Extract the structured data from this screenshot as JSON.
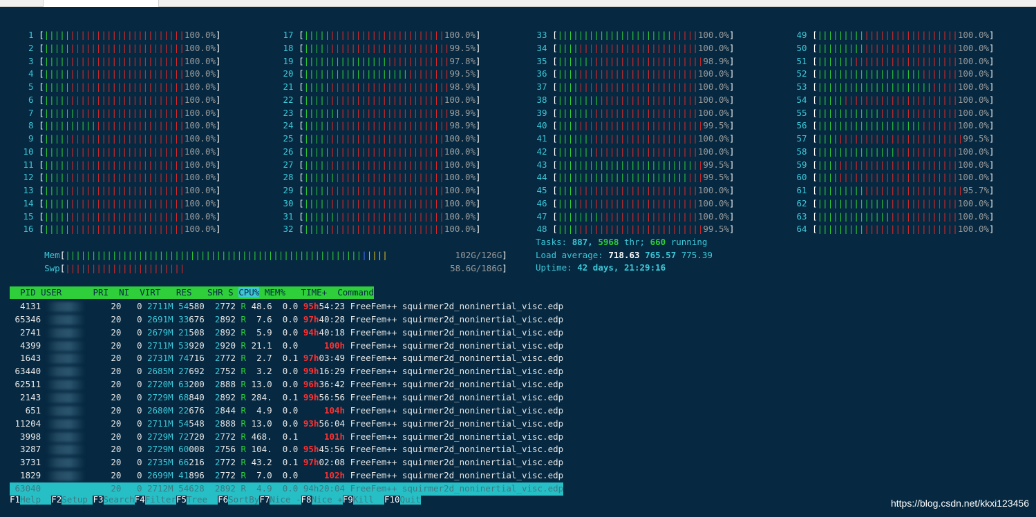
{
  "colors": {
    "terminal_bg": "#062941",
    "bar_green": "#2ecf3a",
    "bar_red": "#e02828",
    "header_bg": "#2ecf3a",
    "selection_bg": "#27bfc6",
    "cyan": "#3cc8d8"
  },
  "cpus": [
    {
      "id": "1",
      "pct": "100.0%",
      "green": 5
    },
    {
      "id": "2",
      "pct": "100.0%",
      "green": 5
    },
    {
      "id": "3",
      "pct": "100.0%",
      "green": 4
    },
    {
      "id": "4",
      "pct": "100.0%",
      "green": 5
    },
    {
      "id": "5",
      "pct": "100.0%",
      "green": 5
    },
    {
      "id": "6",
      "pct": "100.0%",
      "green": 4
    },
    {
      "id": "7",
      "pct": "100.0%",
      "green": 6
    },
    {
      "id": "8",
      "pct": "100.0%",
      "green": 10
    },
    {
      "id": "9",
      "pct": "100.0%",
      "green": 4
    },
    {
      "id": "10",
      "pct": "100.0%",
      "green": 4
    },
    {
      "id": "11",
      "pct": "100.0%",
      "green": 4
    },
    {
      "id": "12",
      "pct": "100.0%",
      "green": 4
    },
    {
      "id": "13",
      "pct": "100.0%",
      "green": 4
    },
    {
      "id": "14",
      "pct": "100.0%",
      "green": 5
    },
    {
      "id": "15",
      "pct": "100.0%",
      "green": 5
    },
    {
      "id": "16",
      "pct": "100.0%",
      "green": 5
    },
    {
      "id": "17",
      "pct": "100.0%",
      "green": 5
    },
    {
      "id": "18",
      "pct": "99.5%",
      "green": 4
    },
    {
      "id": "19",
      "pct": "97.8%",
      "green": 16
    },
    {
      "id": "20",
      "pct": "99.5%",
      "green": 20
    },
    {
      "id": "21",
      "pct": "98.9%",
      "green": 5
    },
    {
      "id": "22",
      "pct": "100.0%",
      "green": 4
    },
    {
      "id": "23",
      "pct": "98.9%",
      "green": 7
    },
    {
      "id": "24",
      "pct": "98.9%",
      "green": 5
    },
    {
      "id": "25",
      "pct": "100.0%",
      "green": 4
    },
    {
      "id": "26",
      "pct": "100.0%",
      "green": 5
    },
    {
      "id": "27",
      "pct": "100.0%",
      "green": 4
    },
    {
      "id": "28",
      "pct": "100.0%",
      "green": 6
    },
    {
      "id": "29",
      "pct": "100.0%",
      "green": 5
    },
    {
      "id": "30",
      "pct": "100.0%",
      "green": 4
    },
    {
      "id": "31",
      "pct": "100.0%",
      "green": 6
    },
    {
      "id": "32",
      "pct": "100.0%",
      "green": 5
    },
    {
      "id": "33",
      "pct": "100.0%",
      "green": 22
    },
    {
      "id": "34",
      "pct": "100.0%",
      "green": 4
    },
    {
      "id": "35",
      "pct": "98.9%",
      "green": 6
    },
    {
      "id": "36",
      "pct": "100.0%",
      "green": 4
    },
    {
      "id": "37",
      "pct": "100.0%",
      "green": 4
    },
    {
      "id": "38",
      "pct": "100.0%",
      "green": 8
    },
    {
      "id": "39",
      "pct": "100.0%",
      "green": 6
    },
    {
      "id": "40",
      "pct": "99.5%",
      "green": 4
    },
    {
      "id": "41",
      "pct": "100.0%",
      "green": 6
    },
    {
      "id": "42",
      "pct": "100.0%",
      "green": 7
    },
    {
      "id": "43",
      "pct": "99.5%",
      "green": 26
    },
    {
      "id": "44",
      "pct": "99.5%",
      "green": 25
    },
    {
      "id": "45",
      "pct": "100.0%",
      "green": 4
    },
    {
      "id": "46",
      "pct": "100.0%",
      "green": 4
    },
    {
      "id": "47",
      "pct": "100.0%",
      "green": 8
    },
    {
      "id": "48",
      "pct": "99.5%",
      "green": 4
    },
    {
      "id": "49",
      "pct": "100.0%",
      "green": 9
    },
    {
      "id": "50",
      "pct": "100.0%",
      "green": 9
    },
    {
      "id": "51",
      "pct": "100.0%",
      "green": 7
    },
    {
      "id": "52",
      "pct": "100.0%",
      "green": 20
    },
    {
      "id": "53",
      "pct": "100.0%",
      "green": 22
    },
    {
      "id": "54",
      "pct": "100.0%",
      "green": 5
    },
    {
      "id": "55",
      "pct": "100.0%",
      "green": 12
    },
    {
      "id": "56",
      "pct": "100.0%",
      "green": 20
    },
    {
      "id": "57",
      "pct": "99.5%",
      "green": 4
    },
    {
      "id": "58",
      "pct": "100.0%",
      "green": 15
    },
    {
      "id": "59",
      "pct": "100.0%",
      "green": 4
    },
    {
      "id": "60",
      "pct": "100.0%",
      "green": 4
    },
    {
      "id": "61",
      "pct": "95.7%",
      "green": 9
    },
    {
      "id": "62",
      "pct": "100.0%",
      "green": 14
    },
    {
      "id": "63",
      "pct": "100.0%",
      "green": 14
    },
    {
      "id": "64",
      "pct": "100.0%",
      "green": 9
    }
  ],
  "mem": {
    "label": "Mem",
    "value": "102G/126G",
    "used_fraction": 0.81
  },
  "swp": {
    "label": "Swp",
    "value": "58.6G/186G",
    "used_fraction": 0.315
  },
  "summary": {
    "tasks_label": "Tasks:",
    "tasks": "887,",
    "threads": "5968",
    "threads_label": "thr;",
    "running": "660",
    "running_label": "running",
    "load_label": "Load average:",
    "load1": "718.63",
    "load5": "765.57",
    "load15": "775.39",
    "uptime_label": "Uptime:",
    "uptime": "42 days, 21:29:16"
  },
  "columns": {
    "pid": "PID",
    "user": "USER",
    "pri": "PRI",
    "ni": "NI",
    "virt": "VIRT",
    "res": "RES",
    "shr": "SHR",
    "s": "S",
    "cpu": "CPU%",
    "mem": "MEM%",
    "time": "TIME+",
    "command": "Command"
  },
  "processes": [
    {
      "pid": "4131",
      "pri": "20",
      "ni": "0",
      "virt_a": "2711M",
      "res_a": "54",
      "res_b": "580",
      "shr_a": "2",
      "shr_b": "772",
      "s": "R",
      "cpu": "48.6",
      "mem": "0.0",
      "time_h": "95h",
      "time_r": "54:23",
      "cmd": "FreeFem++ squirmer2d_noninertial_visc.edp"
    },
    {
      "pid": "65346",
      "pri": "20",
      "ni": "0",
      "virt_a": "2691M",
      "res_a": "33",
      "res_b": "676",
      "shr_a": "2",
      "shr_b": "892",
      "s": "R",
      "cpu": "7.6",
      "mem": "0.0",
      "time_h": "97h",
      "time_r": "40:28",
      "cmd": "FreeFem++ squirmer2d_noninertial_visc.edp"
    },
    {
      "pid": "2741",
      "pri": "20",
      "ni": "0",
      "virt_a": "2679M",
      "res_a": "21",
      "res_b": "508",
      "shr_a": "2",
      "shr_b": "892",
      "s": "R",
      "cpu": "5.9",
      "mem": "0.0",
      "time_h": "94h",
      "time_r": "40:18",
      "cmd": "FreeFem++ squirmer2d_noninertial_visc.edp"
    },
    {
      "pid": "4399",
      "pri": "20",
      "ni": "0",
      "virt_a": "2711M",
      "res_a": "53",
      "res_b": "920",
      "shr_a": "2",
      "shr_b": "920",
      "s": "R",
      "cpu": "21.1",
      "mem": "0.0",
      "time_h": "100h",
      "time_r": "",
      "cmd": "FreeFem++ squirmer2d_noninertial_visc.edp"
    },
    {
      "pid": "1643",
      "pri": "20",
      "ni": "0",
      "virt_a": "2731M",
      "res_a": "74",
      "res_b": "716",
      "shr_a": "2",
      "shr_b": "772",
      "s": "R",
      "cpu": "2.7",
      "mem": "0.1",
      "time_h": "97h",
      "time_r": "03:49",
      "cmd": "FreeFem++ squirmer2d_noninertial_visc.edp"
    },
    {
      "pid": "63440",
      "pri": "20",
      "ni": "0",
      "virt_a": "2685M",
      "res_a": "27",
      "res_b": "692",
      "shr_a": "2",
      "shr_b": "752",
      "s": "R",
      "cpu": "3.2",
      "mem": "0.0",
      "time_h": "99h",
      "time_r": "16:29",
      "cmd": "FreeFem++ squirmer2d_noninertial_visc.edp"
    },
    {
      "pid": "62511",
      "pri": "20",
      "ni": "0",
      "virt_a": "2720M",
      "res_a": "63",
      "res_b": "200",
      "shr_a": "2",
      "shr_b": "888",
      "s": "R",
      "cpu": "13.0",
      "mem": "0.0",
      "time_h": "96h",
      "time_r": "36:42",
      "cmd": "FreeFem++ squirmer2d_noninertial_visc.edp"
    },
    {
      "pid": "2143",
      "pri": "20",
      "ni": "0",
      "virt_a": "2729M",
      "res_a": "68",
      "res_b": "840",
      "shr_a": "2",
      "shr_b": "892",
      "s": "R",
      "cpu": "284.",
      "mem": "0.1",
      "time_h": "99h",
      "time_r": "56:56",
      "cmd": "FreeFem++ squirmer2d_noninertial_visc.edp"
    },
    {
      "pid": "651",
      "pri": "20",
      "ni": "0",
      "virt_a": "2680M",
      "res_a": "22",
      "res_b": "676",
      "shr_a": "2",
      "shr_b": "844",
      "s": "R",
      "cpu": "4.9",
      "mem": "0.0",
      "time_h": "104h",
      "time_r": "",
      "cmd": "FreeFem++ squirmer2d_noninertial_visc.edp"
    },
    {
      "pid": "11204",
      "pri": "20",
      "ni": "0",
      "virt_a": "2711M",
      "res_a": "54",
      "res_b": "548",
      "shr_a": "2",
      "shr_b": "888",
      "s": "R",
      "cpu": "13.0",
      "mem": "0.0",
      "time_h": "93h",
      "time_r": "56:04",
      "cmd": "FreeFem++ squirmer2d_noninertial_visc.edp"
    },
    {
      "pid": "3998",
      "pri": "20",
      "ni": "0",
      "virt_a": "2729M",
      "res_a": "72",
      "res_b": "720",
      "shr_a": "2",
      "shr_b": "772",
      "s": "R",
      "cpu": "468.",
      "mem": "0.1",
      "time_h": "101h",
      "time_r": "",
      "cmd": "FreeFem++ squirmer2d_noninertial_visc.edp"
    },
    {
      "pid": "3287",
      "pri": "20",
      "ni": "0",
      "virt_a": "2729M",
      "res_a": "60",
      "res_b": "008",
      "shr_a": "2",
      "shr_b": "756",
      "s": "R",
      "cpu": "104.",
      "mem": "0.0",
      "time_h": "95h",
      "time_r": "45:56",
      "cmd": "FreeFem++ squirmer2d_noninertial_visc.edp"
    },
    {
      "pid": "3731",
      "pri": "20",
      "ni": "0",
      "virt_a": "2735M",
      "res_a": "66",
      "res_b": "216",
      "shr_a": "2",
      "shr_b": "772",
      "s": "R",
      "cpu": "43.2",
      "mem": "0.1",
      "time_h": "97h",
      "time_r": "02:08",
      "cmd": "FreeFem++ squirmer2d_noninertial_visc.edp"
    },
    {
      "pid": "1829",
      "pri": "20",
      "ni": "0",
      "virt_a": "2699M",
      "res_a": "41",
      "res_b": "896",
      "shr_a": "2",
      "shr_b": "772",
      "s": "R",
      "cpu": "7.0",
      "mem": "0.0",
      "time_h": "102h",
      "time_r": "",
      "cmd": "FreeFem++ squirmer2d_noninertial_visc.edp"
    }
  ],
  "selected_process": {
    "pid": "63040",
    "pri": "20",
    "ni": "0",
    "virt_a": "2712M",
    "res_a": "54",
    "res_b": "628",
    "shr_a": "2",
    "shr_b": "892",
    "s": "R",
    "cpu": "4.9",
    "mem": "0.0",
    "time_h": "94h",
    "time_r": "20:04",
    "cmd": "FreeFem++ squirmer2d_noninertial_visc.edp"
  },
  "fkeys": [
    {
      "key": "F1",
      "label": "Help  "
    },
    {
      "key": "F2",
      "label": "Setup "
    },
    {
      "key": "F3",
      "label": "Search"
    },
    {
      "key": "F4",
      "label": "Filter"
    },
    {
      "key": "F5",
      "label": "Tree  "
    },
    {
      "key": "F6",
      "label": "SortBy"
    },
    {
      "key": "F7",
      "label": "Nice -"
    },
    {
      "key": "F8",
      "label": "Nice +"
    },
    {
      "key": "F9",
      "label": "Kill  "
    },
    {
      "key": "F10",
      "label": "Quit"
    }
  ],
  "watermark": "https://blog.csdn.net/kkxi123456"
}
